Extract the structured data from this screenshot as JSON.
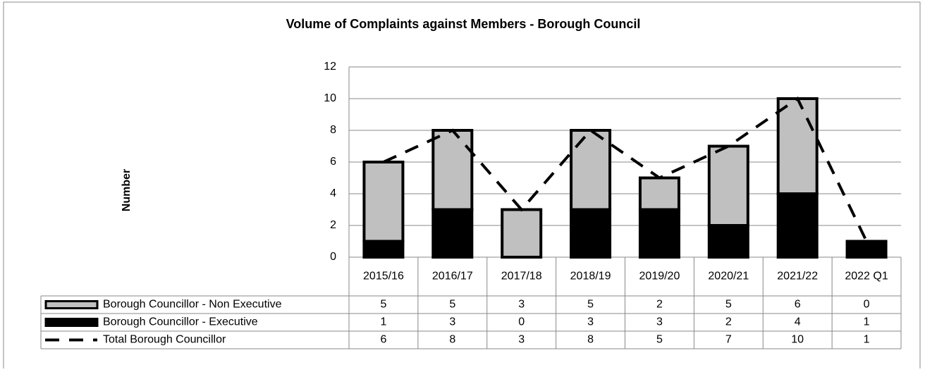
{
  "chart_data": {
    "type": "bar",
    "stacked": true,
    "title": "Volume of Complaints against Members - Borough Council",
    "y_label": "Number",
    "categories": [
      "2015/16",
      "2016/17",
      "2017/18",
      "2018/19",
      "2019/20",
      "2020/21",
      "2021/22",
      "2022 Q1"
    ],
    "series": [
      {
        "name": "Borough Councillor - Executive",
        "type": "bar",
        "color": "#000000",
        "values": [
          1,
          3,
          0,
          3,
          3,
          2,
          4,
          1
        ]
      },
      {
        "name": "Borough Councillor - Non Executive",
        "type": "bar",
        "color": "#c0c0c0",
        "values": [
          5,
          5,
          3,
          5,
          2,
          5,
          6,
          0
        ]
      },
      {
        "name": "Total Borough Councillor",
        "type": "line",
        "color": "#000000",
        "values": [
          6,
          8,
          3,
          8,
          5,
          7,
          10,
          1
        ]
      }
    ],
    "table_order": [
      1,
      0,
      2
    ],
    "ylim": [
      0,
      12
    ],
    "yticks": [
      0,
      2,
      4,
      6,
      8,
      10,
      12
    ],
    "grid": true,
    "data_table": true
  }
}
